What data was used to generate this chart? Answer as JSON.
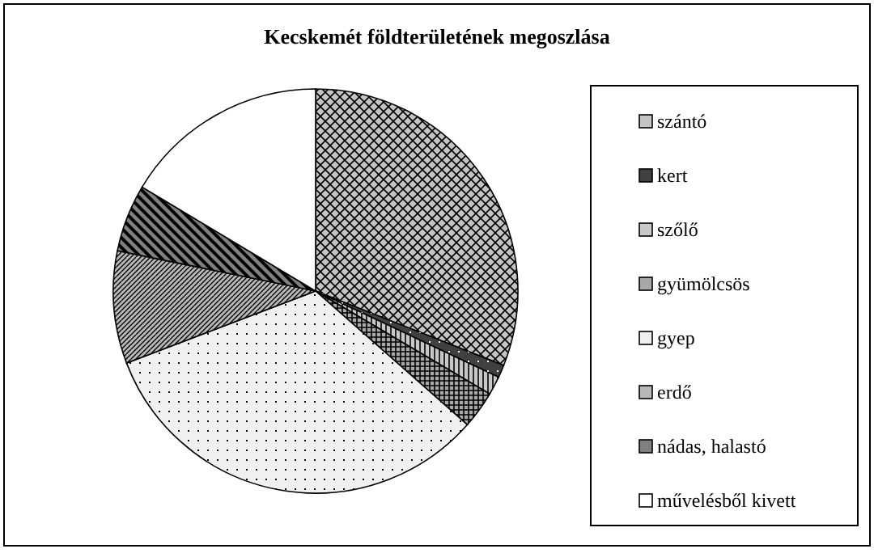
{
  "chart_data": {
    "type": "pie",
    "title": "Kecskemét földterületének megoszlása",
    "categories": [
      "szántó",
      "kert",
      "szőlő",
      "gyümölcsös",
      "gyep",
      "erdő",
      "nádas, halastó",
      "művelésből kivett"
    ],
    "values": [
      31,
      1,
      1.5,
      3,
      32.7,
      9,
      5.4,
      16.4
    ],
    "colors": [
      "#c4c4c4",
      "#404040",
      "#c8c8c8",
      "#a8a8a8",
      "#f0f0f0",
      "#b8b8b8",
      "#808080",
      "#ffffff"
    ],
    "legend": "right"
  }
}
